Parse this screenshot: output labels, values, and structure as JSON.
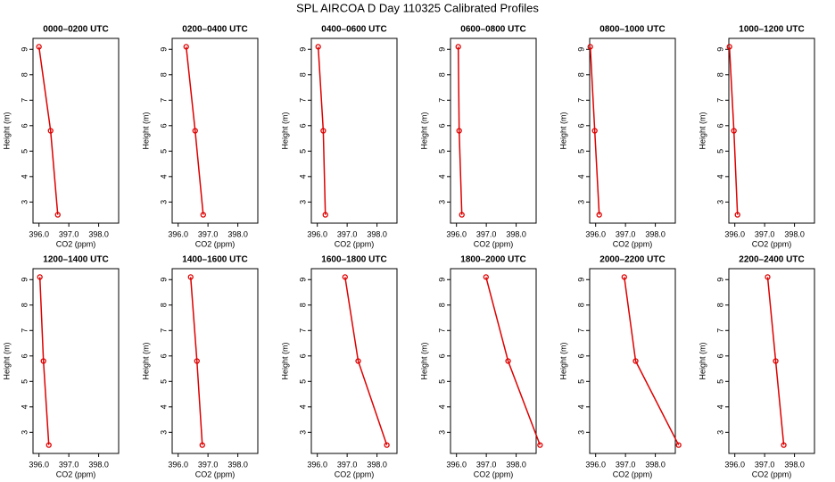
{
  "title": "SPL AIRCOA D  Day 110325  Calibrated Profiles",
  "chart_data": [
    {
      "type": "line",
      "title": "0000–0200 UTC",
      "x_label": "CO2 (ppm)",
      "y_label": "Height (m)",
      "color": "#dd0000",
      "x": [
        396.0,
        396.39,
        396.63
      ],
      "values": [
        9.1,
        5.8,
        2.5
      ],
      "xlim": [
        395.8,
        398.67
      ],
      "ylim": [
        2.17,
        9.43
      ],
      "xticks": [
        {
          "value": 396,
          "label": "396.0"
        },
        {
          "value": 397,
          "label": "397.0"
        },
        {
          "value": 398,
          "label": "398.0"
        }
      ],
      "yticks": [
        3,
        4,
        5,
        6,
        7,
        8,
        9
      ]
    },
    {
      "type": "line",
      "title": "0200–0400 UTC",
      "x_label": "CO2 (ppm)",
      "y_label": "Height (m)",
      "color": "#dd0000",
      "x": [
        396.27,
        396.57,
        396.84
      ],
      "values": [
        9.1,
        5.8,
        2.5
      ],
      "xlim": [
        395.8,
        398.67
      ],
      "ylim": [
        2.17,
        9.43
      ],
      "xticks": [
        {
          "value": 396,
          "label": "396.0"
        },
        {
          "value": 397,
          "label": "397.0"
        },
        {
          "value": 398,
          "label": "398.0"
        }
      ],
      "yticks": [
        3,
        4,
        5,
        6,
        7,
        8,
        9
      ]
    },
    {
      "type": "line",
      "title": "0400–0600 UTC",
      "x_label": "CO2 (ppm)",
      "y_label": "Height (m)",
      "color": "#dd0000",
      "x": [
        396.03,
        396.2,
        396.27
      ],
      "values": [
        9.1,
        5.8,
        2.5
      ],
      "xlim": [
        395.8,
        398.67
      ],
      "ylim": [
        2.17,
        9.43
      ],
      "xticks": [
        {
          "value": 396,
          "label": "396.0"
        },
        {
          "value": 397,
          "label": "397.0"
        },
        {
          "value": 398,
          "label": "398.0"
        }
      ],
      "yticks": [
        3,
        4,
        5,
        6,
        7,
        8,
        9
      ]
    },
    {
      "type": "line",
      "title": "0600–0800 UTC",
      "x_label": "CO2 (ppm)",
      "y_label": "Height (m)",
      "color": "#dd0000",
      "x": [
        396.06,
        396.09,
        396.18
      ],
      "values": [
        9.1,
        5.8,
        2.5
      ],
      "xlim": [
        395.8,
        398.67
      ],
      "ylim": [
        2.17,
        9.43
      ],
      "xticks": [
        {
          "value": 396,
          "label": "396.0"
        },
        {
          "value": 397,
          "label": "397.0"
        },
        {
          "value": 398,
          "label": "398.0"
        }
      ],
      "yticks": [
        3,
        4,
        5,
        6,
        7,
        8,
        9
      ]
    },
    {
      "type": "line",
      "title": "0800–1000 UTC",
      "x_label": "CO2 (ppm)",
      "y_label": "Height (m)",
      "color": "#dd0000",
      "x": [
        395.82,
        395.97,
        396.12
      ],
      "values": [
        9.1,
        5.8,
        2.5
      ],
      "xlim": [
        395.8,
        398.67
      ],
      "ylim": [
        2.17,
        9.43
      ],
      "xticks": [
        {
          "value": 396,
          "label": "396.0"
        },
        {
          "value": 397,
          "label": "397.0"
        },
        {
          "value": 398,
          "label": "398.0"
        }
      ],
      "yticks": [
        3,
        4,
        5,
        6,
        7,
        8,
        9
      ]
    },
    {
      "type": "line",
      "title": "1000–1200 UTC",
      "x_label": "CO2 (ppm)",
      "y_label": "Height (m)",
      "color": "#dd0000",
      "x": [
        395.82,
        395.97,
        396.09
      ],
      "values": [
        9.1,
        5.8,
        2.5
      ],
      "xlim": [
        395.8,
        398.67
      ],
      "ylim": [
        2.17,
        9.43
      ],
      "xticks": [
        {
          "value": 396,
          "label": "396.0"
        },
        {
          "value": 397,
          "label": "397.0"
        },
        {
          "value": 398,
          "label": "398.0"
        }
      ],
      "yticks": [
        3,
        4,
        5,
        6,
        7,
        8,
        9
      ]
    },
    {
      "type": "line",
      "title": "1200–1400 UTC",
      "x_label": "CO2 (ppm)",
      "y_label": "Height (m)",
      "color": "#dd0000",
      "x": [
        396.03,
        396.15,
        396.33
      ],
      "values": [
        9.1,
        5.8,
        2.5
      ],
      "xlim": [
        395.8,
        398.67
      ],
      "ylim": [
        2.17,
        9.43
      ],
      "xticks": [
        {
          "value": 396,
          "label": "396.0"
        },
        {
          "value": 397,
          "label": "397.0"
        },
        {
          "value": 398,
          "label": "398.0"
        }
      ],
      "yticks": [
        3,
        4,
        5,
        6,
        7,
        8,
        9
      ]
    },
    {
      "type": "line",
      "title": "1400–1600 UTC",
      "x_label": "CO2 (ppm)",
      "y_label": "Height (m)",
      "color": "#dd0000",
      "x": [
        396.42,
        396.63,
        396.81
      ],
      "values": [
        9.1,
        5.8,
        2.5
      ],
      "xlim": [
        395.8,
        398.67
      ],
      "ylim": [
        2.17,
        9.43
      ],
      "xticks": [
        {
          "value": 396,
          "label": "396.0"
        },
        {
          "value": 397,
          "label": "397.0"
        },
        {
          "value": 398,
          "label": "398.0"
        }
      ],
      "yticks": [
        3,
        4,
        5,
        6,
        7,
        8,
        9
      ]
    },
    {
      "type": "line",
      "title": "1600–1800 UTC",
      "x_label": "CO2 (ppm)",
      "y_label": "Height (m)",
      "color": "#dd0000",
      "x": [
        396.93,
        397.37,
        398.33
      ],
      "values": [
        9.1,
        5.8,
        2.5
      ],
      "xlim": [
        395.8,
        398.67
      ],
      "ylim": [
        2.17,
        9.43
      ],
      "xticks": [
        {
          "value": 396,
          "label": "396.0"
        },
        {
          "value": 397,
          "label": "397.0"
        },
        {
          "value": 398,
          "label": "398.0"
        }
      ],
      "yticks": [
        3,
        4,
        5,
        6,
        7,
        8,
        9
      ]
    },
    {
      "type": "line",
      "title": "1800–2000 UTC",
      "x_label": "CO2 (ppm)",
      "y_label": "Height (m)",
      "color": "#dd0000",
      "x": [
        396.99,
        397.73,
        398.8
      ],
      "values": [
        9.1,
        5.8,
        2.5
      ],
      "xlim": [
        395.8,
        398.67
      ],
      "ylim": [
        2.17,
        9.43
      ],
      "xticks": [
        {
          "value": 396,
          "label": "396.0"
        },
        {
          "value": 397,
          "label": "397.0"
        },
        {
          "value": 398,
          "label": "398.0"
        }
      ],
      "yticks": [
        3,
        4,
        5,
        6,
        7,
        8,
        9
      ]
    },
    {
      "type": "line",
      "title": "2000–2200 UTC",
      "x_label": "CO2 (ppm)",
      "y_label": "Height (m)",
      "color": "#dd0000",
      "x": [
        396.96,
        397.34,
        398.78
      ],
      "values": [
        9.1,
        5.8,
        2.5
      ],
      "xlim": [
        395.8,
        398.67
      ],
      "ylim": [
        2.17,
        9.43
      ],
      "xticks": [
        {
          "value": 396,
          "label": "396.0"
        },
        {
          "value": 397,
          "label": "397.0"
        },
        {
          "value": 398,
          "label": "398.0"
        }
      ],
      "yticks": [
        3,
        4,
        5,
        6,
        7,
        8,
        9
      ]
    },
    {
      "type": "line",
      "title": "2200–2400 UTC",
      "x_label": "CO2 (ppm)",
      "y_label": "Height (m)",
      "color": "#dd0000",
      "x": [
        397.1,
        397.37,
        397.64
      ],
      "values": [
        9.1,
        5.8,
        2.5
      ],
      "xlim": [
        395.8,
        398.67
      ],
      "ylim": [
        2.17,
        9.43
      ],
      "xticks": [
        {
          "value": 396,
          "label": "396.0"
        },
        {
          "value": 397,
          "label": "397.0"
        },
        {
          "value": 398,
          "label": "398.0"
        }
      ],
      "yticks": [
        3,
        4,
        5,
        6,
        7,
        8,
        9
      ]
    }
  ]
}
